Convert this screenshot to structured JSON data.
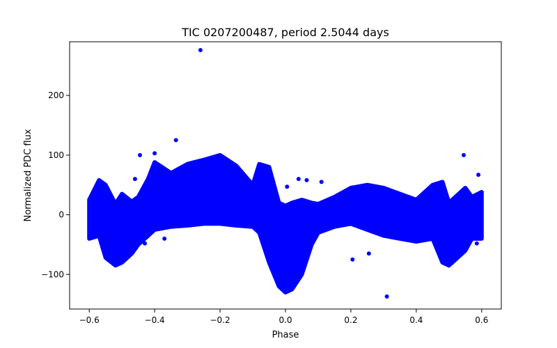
{
  "chart_data": {
    "type": "scatter",
    "title": "TIC 0207200487, period 2.5044 days",
    "xlabel": "Phase",
    "ylabel": "Normalized PDC flux",
    "xlim": [
      -0.66,
      0.66
    ],
    "ylim": [
      -158,
      290
    ],
    "xticks": [
      -0.6,
      -0.4,
      -0.2,
      0.0,
      0.2,
      0.4,
      0.6
    ],
    "xtick_labels": [
      "−0.6",
      "−0.4",
      "−0.2",
      "0.0",
      "0.2",
      "0.4",
      "0.6"
    ],
    "yticks": [
      -100,
      0,
      100,
      200
    ],
    "ytick_labels": [
      "−100",
      "0",
      "100",
      "200"
    ],
    "grid": false,
    "marker_color": "#0000ff",
    "envelope": {
      "x": [
        -0.6,
        -0.57,
        -0.55,
        -0.52,
        -0.5,
        -0.47,
        -0.45,
        -0.42,
        -0.4,
        -0.35,
        -0.3,
        -0.25,
        -0.2,
        -0.15,
        -0.1,
        -0.08,
        -0.05,
        -0.02,
        0.0,
        0.02,
        0.05,
        0.08,
        0.1,
        0.15,
        0.2,
        0.25,
        0.3,
        0.35,
        0.4,
        0.45,
        0.48,
        0.5,
        0.52,
        0.55,
        0.57,
        0.6
      ],
      "upper": [
        25,
        58,
        50,
        18,
        35,
        22,
        30,
        60,
        88,
        70,
        85,
        92,
        100,
        82,
        50,
        85,
        80,
        20,
        15,
        20,
        25,
        20,
        18,
        30,
        45,
        50,
        45,
        35,
        25,
        50,
        55,
        20,
        30,
        45,
        30,
        38
      ],
      "lower": [
        -40,
        -35,
        -72,
        -85,
        -80,
        -65,
        -50,
        -35,
        -25,
        -20,
        -18,
        -15,
        -15,
        -18,
        -20,
        -30,
        -80,
        -120,
        -130,
        -125,
        -100,
        -50,
        -30,
        -20,
        -15,
        -25,
        -35,
        -40,
        -45,
        -40,
        -80,
        -85,
        -75,
        -60,
        -40,
        -40
      ]
    },
    "points": [
      {
        "x": -0.26,
        "y": 276
      },
      {
        "x": -0.335,
        "y": 125
      },
      {
        "x": 0.31,
        "y": -137
      },
      {
        "x": 0.205,
        "y": -75
      },
      {
        "x": 0.255,
        "y": -65
      },
      {
        "x": -0.4,
        "y": 103
      },
      {
        "x": -0.445,
        "y": 100
      },
      {
        "x": 0.545,
        "y": 100
      },
      {
        "x": 0.59,
        "y": 67
      },
      {
        "x": -0.46,
        "y": 60
      },
      {
        "x": 0.005,
        "y": 47
      },
      {
        "x": 0.04,
        "y": 60
      },
      {
        "x": 0.065,
        "y": 58
      },
      {
        "x": 0.11,
        "y": 55
      },
      {
        "x": -0.37,
        "y": -40
      },
      {
        "x": -0.43,
        "y": -48
      },
      {
        "x": 0.585,
        "y": -48
      }
    ]
  }
}
